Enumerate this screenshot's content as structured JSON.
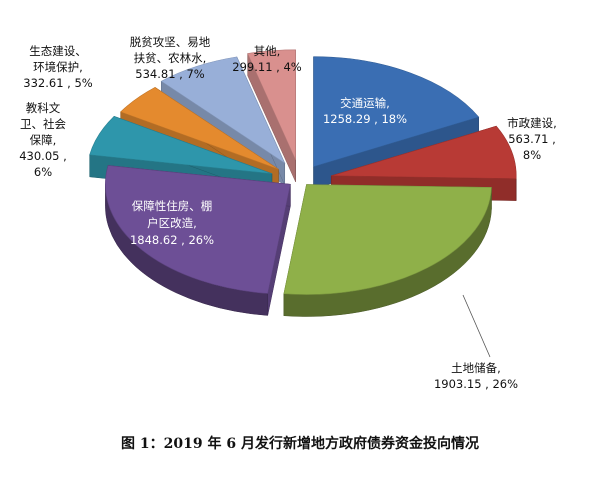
{
  "caption": "图 1：2019 年 6 月发行新增地方政府债券资金投向情况",
  "chart_data": {
    "type": "pie",
    "title": "图 1：2019 年 6 月发行新增地方政府债券资金投向情况",
    "legend": "none",
    "slices": [
      {
        "name": "交通运输",
        "value": 1258.29,
        "percent": "18%",
        "color": "#3a6eb3",
        "label_lines": [
          "交通运输,",
          "1258.29 , 18%"
        ]
      },
      {
        "name": "市政建设",
        "value": 563.71,
        "percent": "8%",
        "color": "#b83a35",
        "label_lines": [
          "市政建设,",
          "563.71 ,",
          "8%"
        ]
      },
      {
        "name": "土地储备",
        "value": 1903.15,
        "percent": "26%",
        "color": "#8fb049",
        "label_lines": [
          "土地储备,",
          "1903.15 , 26%"
        ]
      },
      {
        "name": "保障性住房、棚户区改造",
        "value": 1848.62,
        "percent": "26%",
        "color": "#6d4f96",
        "label_lines": [
          "保障性住房、棚",
          "户区改造,",
          "1848.62 , 26%"
        ]
      },
      {
        "name": "教科文卫、社会保障",
        "value": 430.05,
        "percent": "6%",
        "color": "#2e96ab",
        "label_lines": [
          "教科文",
          "卫、社会",
          "保障,",
          "430.05 ,",
          "6%"
        ]
      },
      {
        "name": "生态建设、环境保护",
        "value": 332.61,
        "percent": "5%",
        "color": "#e48a2e",
        "label_lines": [
          "生态建设、",
          "环境保护,",
          "332.61 , 5%"
        ]
      },
      {
        "name": "脱贫攻坚、易地扶贫、农林水",
        "value": 534.81,
        "percent": "7%",
        "color": "#98afd8",
        "label_lines": [
          "脱贫攻坚、易地",
          "扶贫、农林水,",
          "534.81 , 7%"
        ]
      },
      {
        "name": "其他",
        "value": 299.11,
        "percent": "4%",
        "color": "#d9908e",
        "label_lines": [
          "其他,",
          "299.11 , 4%"
        ]
      }
    ]
  }
}
